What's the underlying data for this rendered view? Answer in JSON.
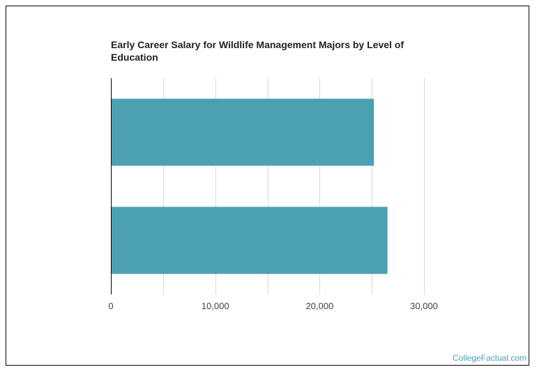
{
  "chart_data": {
    "type": "bar",
    "orientation": "horizontal",
    "title": "Early Career Salary for Wildlife Management Majors by Level of Education",
    "categories": [
      "",
      ""
    ],
    "values": [
      25200,
      26500
    ],
    "xlim": [
      0,
      30000
    ],
    "xticks": [
      0,
      10000,
      20000,
      30000
    ],
    "xtick_labels": [
      "0",
      "10,000",
      "20,000",
      "30,000"
    ],
    "xlabel": "",
    "ylabel": "",
    "grid": true,
    "legend": "none",
    "bar_color": "#4ba1b3",
    "grid_color": "#d9d9d9"
  },
  "footer": {
    "brand": "CollegeFactual.com",
    "brand_color": "#4aa0b5"
  }
}
